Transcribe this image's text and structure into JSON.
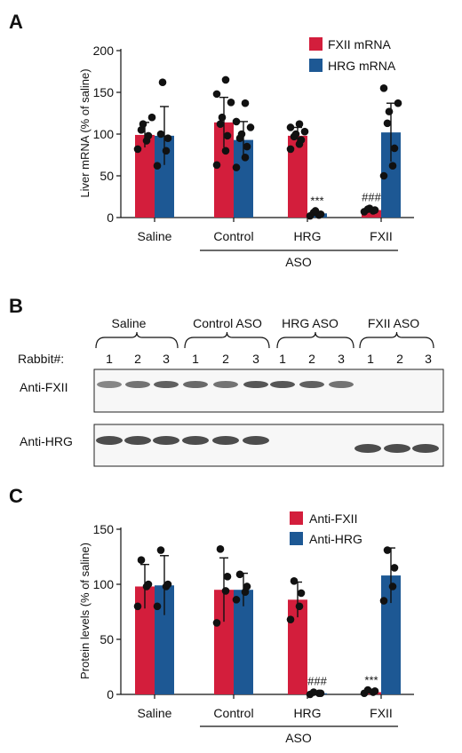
{
  "colors": {
    "red": "#d31e3c",
    "blue": "#1d5894",
    "band": "#3a3a3a"
  },
  "panelA": {
    "letter": "A",
    "ylabel": "Liver mRNA (% of saline)",
    "legend": [
      "FXII mRNA",
      "HRG mRNA"
    ],
    "group_label": "ASO",
    "sig": [
      "***",
      "###"
    ]
  },
  "panelB": {
    "letter": "B",
    "groups": [
      "Saline",
      "Control ASO",
      "HRG ASO",
      "FXII ASO"
    ],
    "rabbit_label": "Rabbit#:",
    "rabbit_numbers": [
      "1",
      "2",
      "3"
    ],
    "rows": [
      "Anti-FXII",
      "Anti-HRG"
    ],
    "fxii_band_intensity": [
      0.6,
      0.7,
      0.8,
      0.75,
      0.7,
      0.85,
      0.85,
      0.8,
      0.7,
      0,
      0,
      0
    ],
    "hrg_band_intensity": [
      0.9,
      0.9,
      0.9,
      0.9,
      0.9,
      0.9,
      0,
      0,
      0,
      0.9,
      0.9,
      0.9
    ]
  },
  "panelC": {
    "letter": "C",
    "ylabel": "Protein levels (% of saline)",
    "legend": [
      "Anti-FXII",
      "Anti-HRG"
    ],
    "group_label": "ASO",
    "sig": [
      "###",
      "***"
    ]
  },
  "chart_data": [
    {
      "type": "bar",
      "title": "",
      "xlabel": "ASO",
      "ylabel": "Liver mRNA (% of saline)",
      "ylim": [
        0,
        200
      ],
      "yticks": [
        0,
        50,
        100,
        150,
        200
      ],
      "categories": [
        "Saline",
        "Control",
        "HRG",
        "FXII"
      ],
      "series": [
        {
          "name": "FXII mRNA",
          "values": [
            99,
            114,
            98,
            9
          ],
          "errors": [
            15,
            30,
            10,
            2
          ],
          "points": [
            [
              82,
              92,
              98,
              105,
              112,
              120
            ],
            [
              63,
              80,
              98,
              112,
              120,
              138,
              148,
              165
            ],
            [
              82,
              88,
              93,
              97,
              100,
              103,
              108,
              112
            ],
            [
              7,
              8,
              9,
              10,
              11
            ]
          ]
        },
        {
          "name": "HRG mRNA",
          "values": [
            98,
            93,
            5,
            102
          ],
          "errors": [
            35,
            22,
            2,
            35
          ],
          "points": [
            [
              62,
              80,
              95,
              100,
              162
            ],
            [
              60,
              72,
              85,
              95,
              100,
              108,
              115,
              137
            ],
            [
              2,
              3,
              4,
              6,
              8
            ],
            [
              50,
              62,
              83,
              113,
              127,
              137,
              155
            ]
          ]
        }
      ],
      "annotations": [
        {
          "category": "HRG",
          "series": "HRG mRNA",
          "text": "***"
        },
        {
          "category": "FXII",
          "series": "FXII mRNA",
          "text": "###"
        }
      ]
    },
    {
      "type": "bar",
      "title": "",
      "xlabel": "ASO",
      "ylabel": "Protein levels (% of saline)",
      "ylim": [
        0,
        150
      ],
      "yticks": [
        0,
        50,
        100,
        150
      ],
      "categories": [
        "Saline",
        "Control",
        "HRG",
        "FXII"
      ],
      "series": [
        {
          "name": "Anti-FXII",
          "values": [
            98,
            95,
            86,
            2
          ],
          "errors": [
            20,
            29,
            16,
            1
          ],
          "points": [
            [
              80,
              98,
              100,
              122
            ],
            [
              65,
              94,
              107,
              132
            ],
            [
              68,
              80,
              92,
              103
            ],
            [
              1,
              2,
              3,
              4
            ]
          ]
        },
        {
          "name": "Anti-HRG",
          "values": [
            99,
            95,
            1,
            108
          ],
          "errors": [
            27,
            15,
            1,
            25
          ],
          "points": [
            [
              80,
              98,
              100,
              131
            ],
            [
              86,
              93,
              98,
              109
            ],
            [
              0,
              1,
              1,
              2
            ],
            [
              85,
              98,
              115,
              131
            ]
          ]
        }
      ],
      "annotations": [
        {
          "category": "HRG",
          "series": "Anti-HRG",
          "text": "###"
        },
        {
          "category": "FXII",
          "series": "Anti-FXII",
          "text": "***"
        }
      ]
    }
  ]
}
